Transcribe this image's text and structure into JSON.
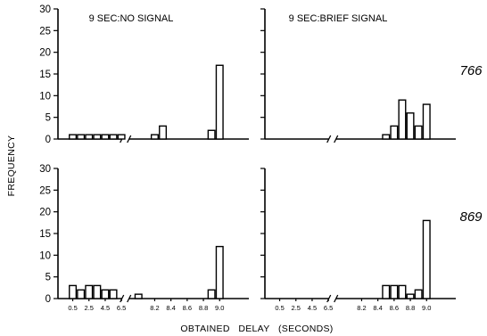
{
  "chart_data": {
    "type": "bar",
    "xlabel": "OBTAINED   DELAY   (SECONDS)",
    "ylabel": "FREQUENCY",
    "ylim": [
      0,
      30
    ],
    "yticks": [
      0,
      5,
      10,
      15,
      20,
      25,
      30
    ],
    "bins": [
      0.5,
      1.5,
      2.5,
      3.5,
      4.5,
      5.5,
      6.5,
      7.3,
      8.1,
      8.2,
      8.3,
      8.4,
      8.5,
      8.6,
      8.7,
      8.8,
      8.9,
      9.0
    ],
    "x_tick_labels": [
      "0.5",
      "2.5",
      "4.5",
      "6.5",
      "8.2",
      "8.4",
      "8.6",
      "8.8",
      "9.0"
    ],
    "panels": [
      {
        "row": 0,
        "col": 0,
        "title": "9 SEC:NO SIGNAL",
        "subject": "",
        "values": [
          1,
          1,
          1,
          1,
          1,
          1,
          1,
          0,
          0,
          1,
          3,
          0,
          0,
          0,
          0,
          0,
          2,
          17
        ]
      },
      {
        "row": 0,
        "col": 1,
        "title": "9 SEC:BRIEF SIGNAL",
        "subject": "766",
        "values": [
          0,
          0,
          0,
          0,
          0,
          0,
          0,
          0,
          0,
          0,
          0,
          0,
          1,
          3,
          9,
          6,
          3,
          8
        ]
      },
      {
        "row": 1,
        "col": 0,
        "title": "",
        "subject": "",
        "values": [
          3,
          2,
          3,
          3,
          2,
          2,
          0,
          1,
          0,
          0,
          0,
          0,
          0,
          0,
          0,
          0,
          2,
          12
        ]
      },
      {
        "row": 1,
        "col": 1,
        "title": "",
        "subject": "869",
        "values": [
          0,
          0,
          0,
          0,
          0,
          0,
          0,
          0,
          0,
          0,
          0,
          0,
          3,
          3,
          3,
          1,
          2,
          18
        ]
      }
    ]
  }
}
